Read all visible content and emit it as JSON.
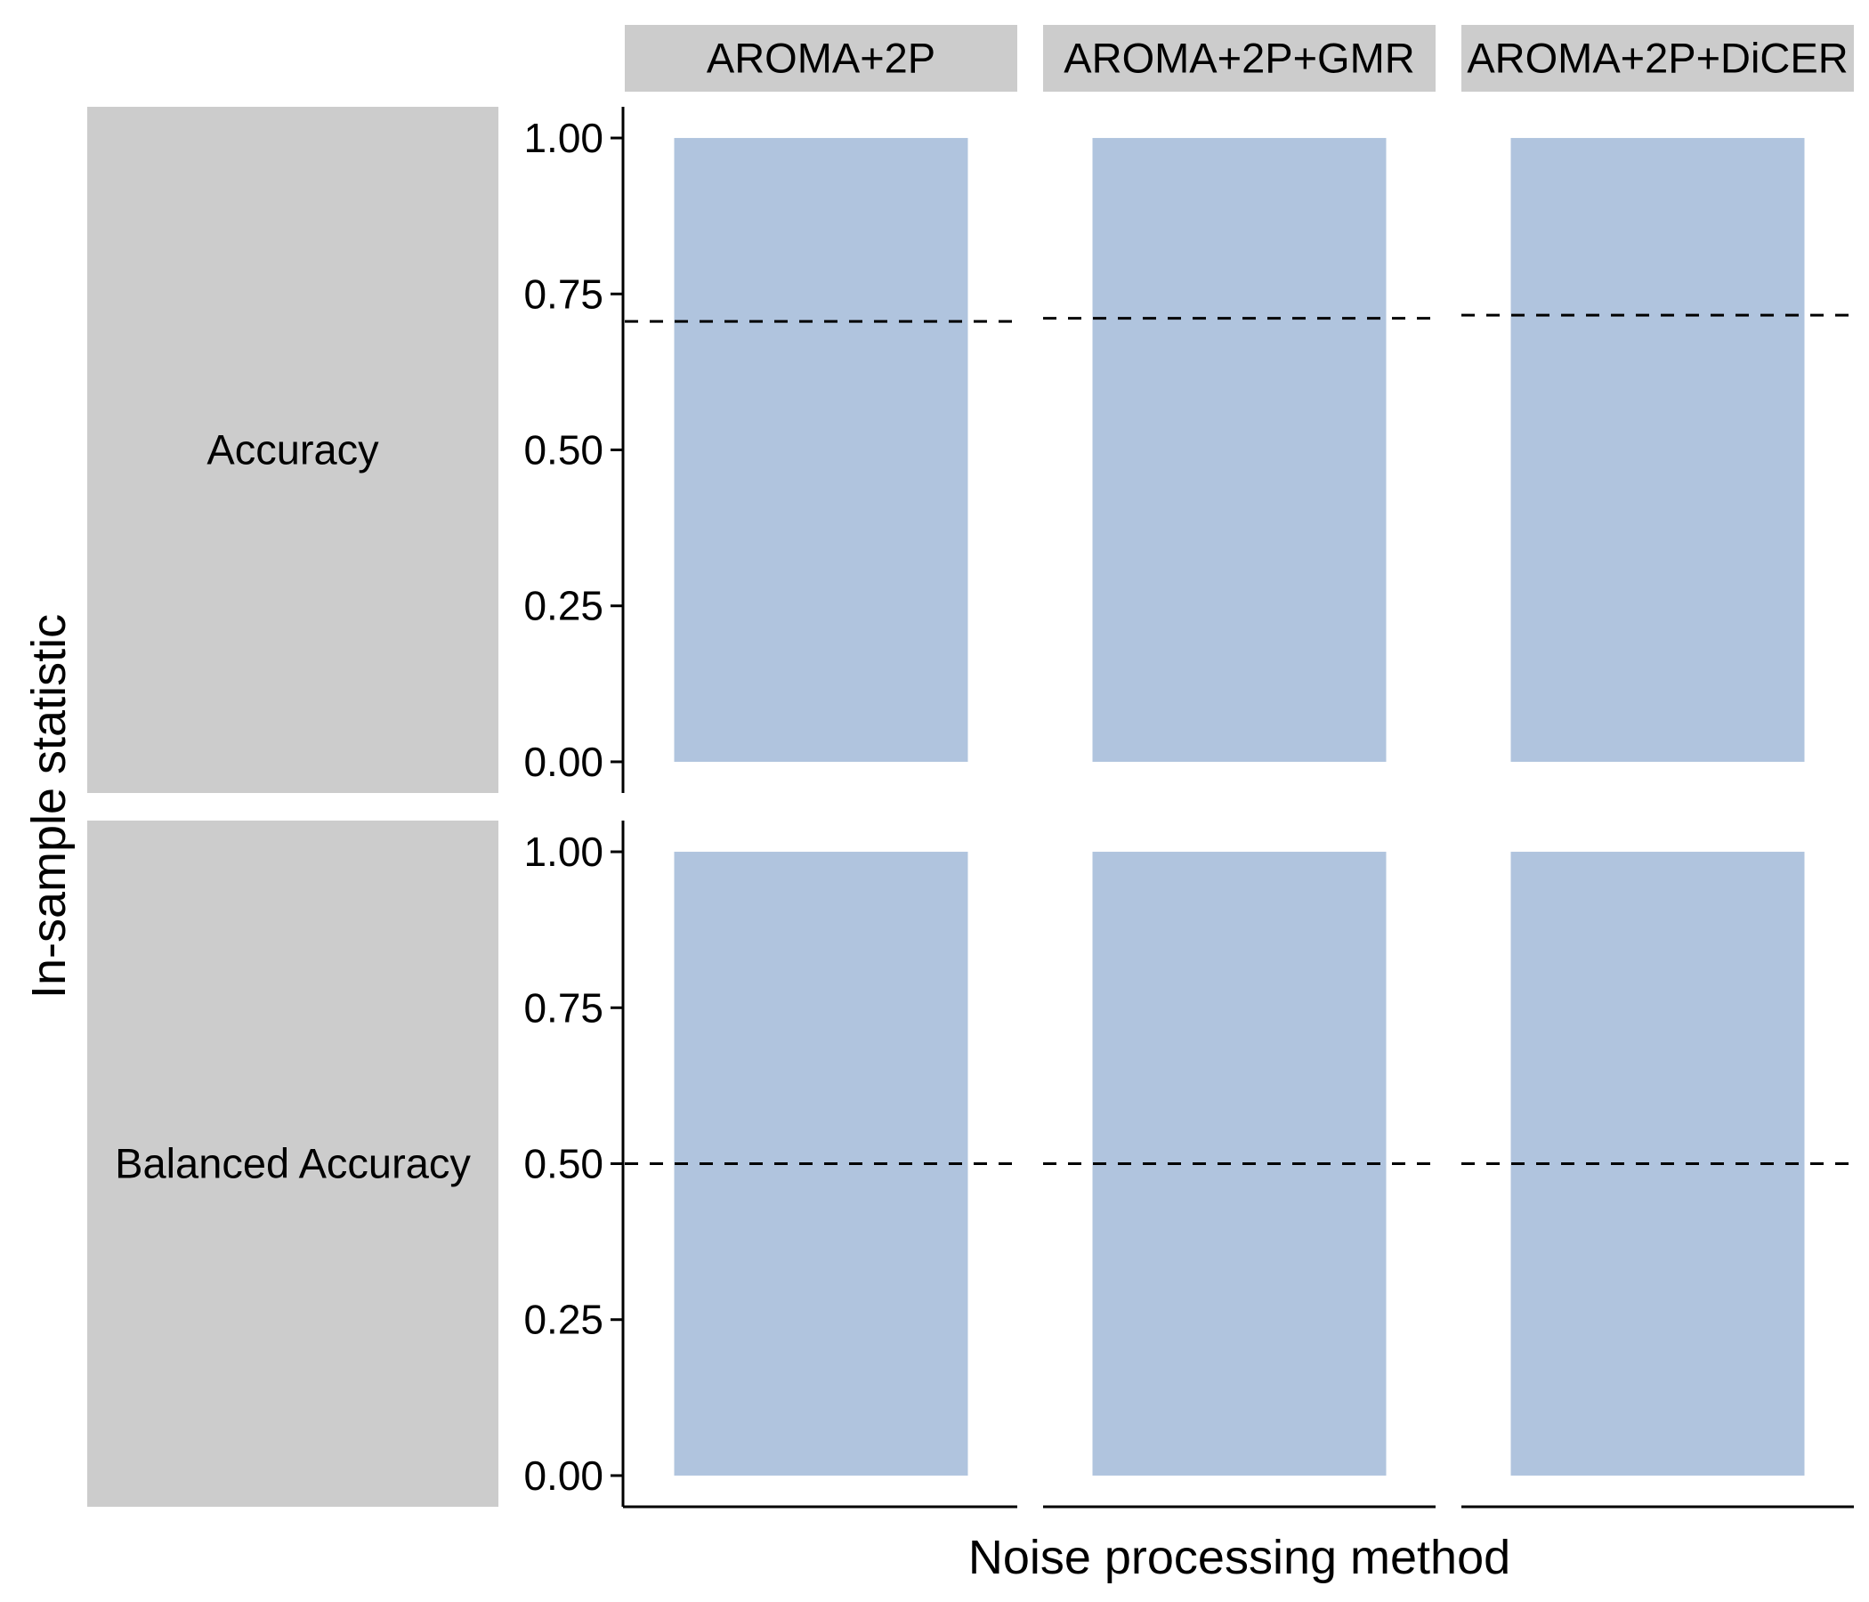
{
  "chart_data": {
    "type": "bar",
    "xlabel": "Noise processing method",
    "ylabel": "In-sample statistic",
    "columns": [
      "AROMA+2P",
      "AROMA+2P+GMR",
      "AROMA+2P+DiCER"
    ],
    "rows": [
      "Accuracy",
      "Balanced Accuracy"
    ],
    "ylim": [
      0,
      1.05
    ],
    "yticks": [
      "0.00",
      "0.25",
      "0.50",
      "0.75",
      "1.00"
    ],
    "grid": false,
    "legend": "none",
    "panels": [
      {
        "row": "Accuracy",
        "column": "AROMA+2P",
        "value": 1.0,
        "reference": 0.706
      },
      {
        "row": "Accuracy",
        "column": "AROMA+2P+GMR",
        "value": 1.0,
        "reference": 0.711
      },
      {
        "row": "Accuracy",
        "column": "AROMA+2P+DiCER",
        "value": 1.0,
        "reference": 0.716
      },
      {
        "row": "Balanced Accuracy",
        "column": "AROMA+2P",
        "value": 1.0,
        "reference": 0.5
      },
      {
        "row": "Balanced Accuracy",
        "column": "AROMA+2P+GMR",
        "value": 1.0,
        "reference": 0.5
      },
      {
        "row": "Balanced Accuracy",
        "column": "AROMA+2P+DiCER",
        "value": 1.0,
        "reference": 0.5
      }
    ],
    "colors": {
      "bar": "#b0c4de",
      "strip": "#cccccc",
      "reference_line": "#000000"
    }
  }
}
